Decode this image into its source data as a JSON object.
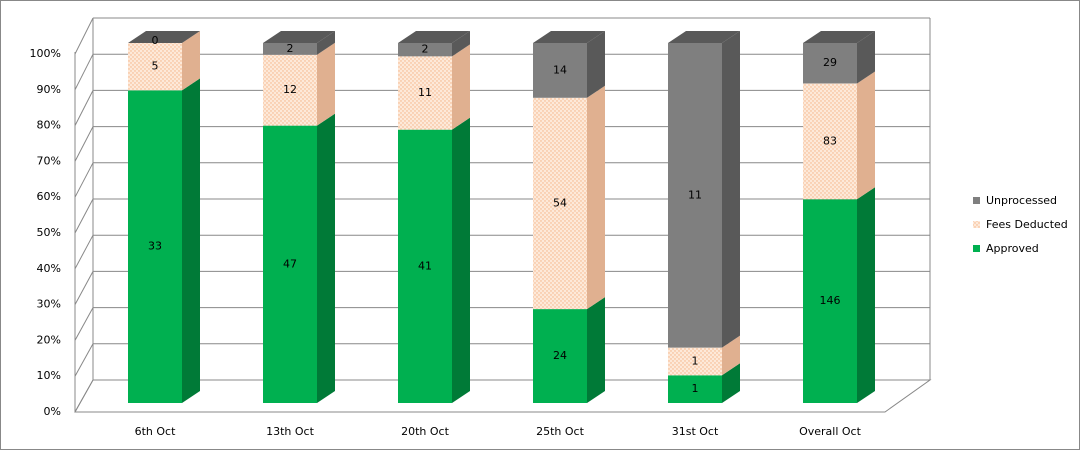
{
  "chart_data": {
    "type": "bar",
    "stacking": "percent",
    "categories": [
      "6th Oct",
      "13th Oct",
      "20th Oct",
      "25th Oct",
      "31st Oct",
      "Overall Oct"
    ],
    "series": [
      {
        "name": "Approved",
        "color": "#00b050",
        "values": [
          33,
          47,
          41,
          24,
          1,
          146
        ]
      },
      {
        "name": "Fees Deducted",
        "color": "#fde9d9",
        "values": [
          5,
          12,
          11,
          54,
          1,
          83
        ]
      },
      {
        "name": "Unprocessed",
        "color": "#7f7f7f",
        "values": [
          0,
          2,
          2,
          14,
          11,
          29
        ]
      }
    ],
    "ylim": [
      0,
      100
    ],
    "yticks": [
      {
        "value": 0,
        "label": "0%"
      },
      {
        "value": 10,
        "label": "10%"
      },
      {
        "value": 20,
        "label": "20%"
      },
      {
        "value": 30,
        "label": "30%"
      },
      {
        "value": 40,
        "label": "40%"
      },
      {
        "value": 50,
        "label": "50%"
      },
      {
        "value": 60,
        "label": "60%"
      },
      {
        "value": 70,
        "label": "70%"
      },
      {
        "value": 80,
        "label": "80%"
      },
      {
        "value": 90,
        "label": "90%"
      },
      {
        "value": 100,
        "label": "100%"
      }
    ],
    "grid": true,
    "legend": "right"
  }
}
